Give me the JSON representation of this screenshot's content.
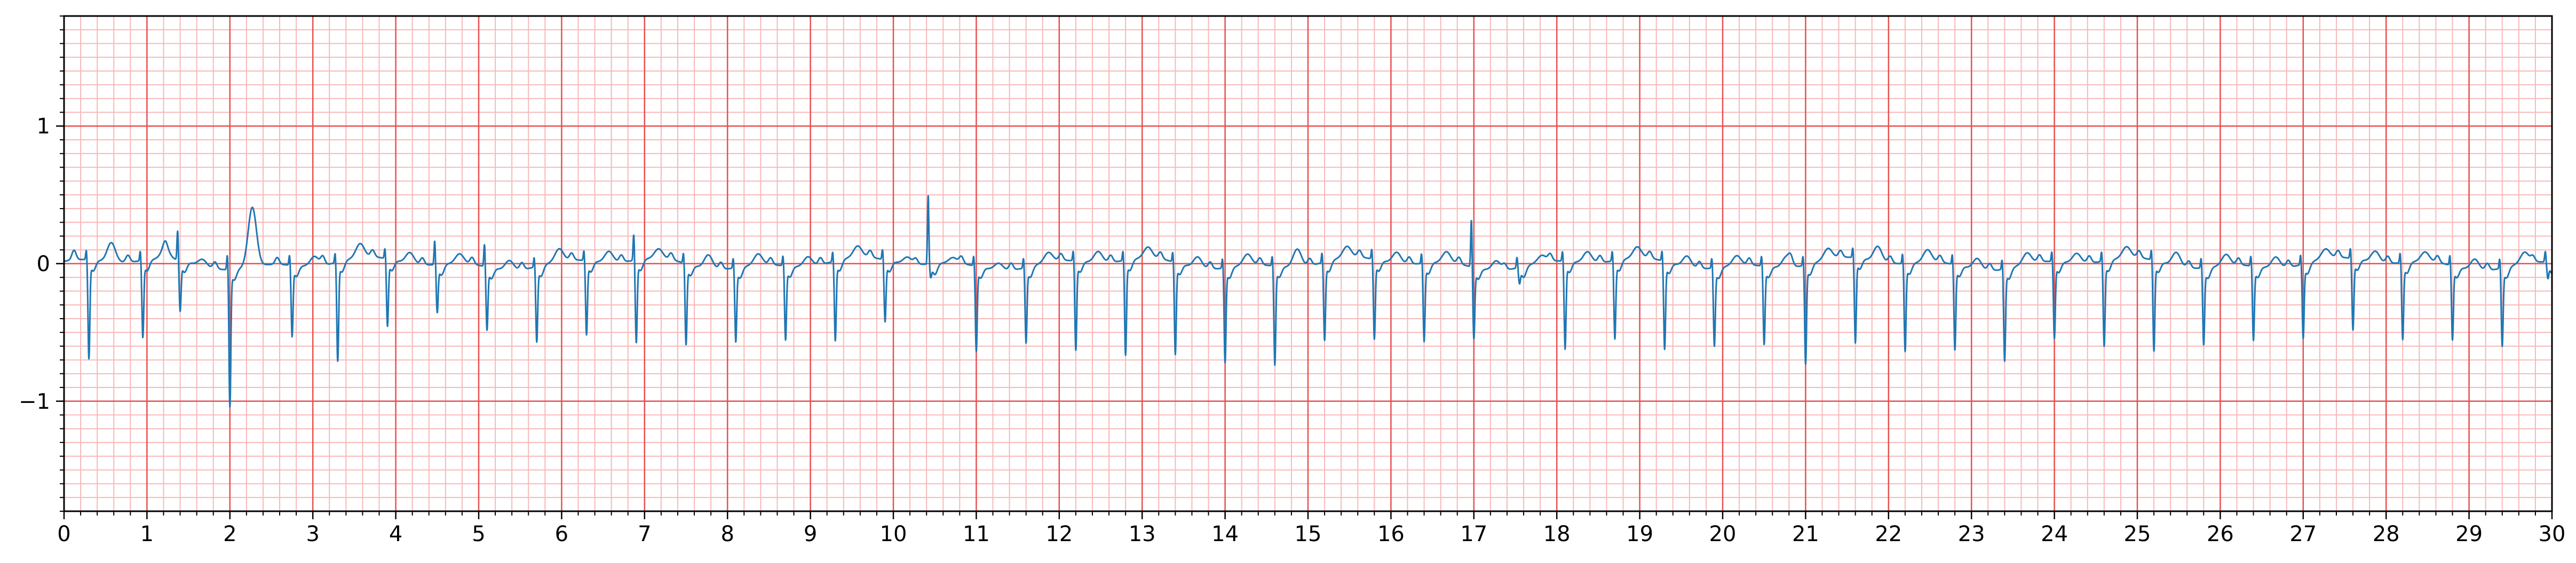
{
  "chart_data": {
    "type": "line",
    "title": "",
    "xlabel": "",
    "ylabel": "",
    "xlim": [
      0,
      30
    ],
    "ylim": [
      -1.8,
      1.8
    ],
    "x_major_ticks": [
      0,
      1,
      2,
      3,
      4,
      5,
      6,
      7,
      8,
      9,
      10,
      11,
      12,
      13,
      14,
      15,
      16,
      17,
      18,
      19,
      20,
      21,
      22,
      23,
      24,
      25,
      26,
      27,
      28,
      29,
      30
    ],
    "x_tick_labels": [
      "0",
      "1",
      "2",
      "3",
      "4",
      "5",
      "6",
      "7",
      "8",
      "9",
      "10",
      "11",
      "12",
      "13",
      "14",
      "15",
      "16",
      "17",
      "18",
      "19",
      "20",
      "21",
      "22",
      "23",
      "24",
      "25",
      "26",
      "27",
      "28",
      "29",
      "30"
    ],
    "x_minor_step": 0.2,
    "y_major_ticks": [
      -1,
      0,
      1
    ],
    "y_tick_labels": [
      "−1",
      "0",
      "1"
    ],
    "y_minor_step": 0.1,
    "grid": true,
    "grid_major_color": "#e85050",
    "grid_minor_color": "#f8b8b8",
    "line_color": "#1f77b4",
    "beats": [
      {
        "t": 0.3,
        "q": -0.7,
        "p": 0.07,
        "tw": 0.14
      },
      {
        "t": 0.95,
        "q": -0.54,
        "p": 0.05,
        "tw": 0.08
      },
      {
        "t": 1.4,
        "q": -0.35,
        "p": 0.05,
        "tw": 0.05,
        "r": 0.22
      },
      {
        "t": 2.0,
        "q": -0.98,
        "p": 0.05,
        "tw": 0.43,
        "r": 0.12
      },
      {
        "t": 2.75,
        "q": -0.5,
        "p": 0.05,
        "tw": 0.07
      },
      {
        "t": 3.3,
        "q": -0.7,
        "p": 0.06,
        "tw": 0.1
      },
      {
        "t": 3.9,
        "q": -0.47,
        "p": 0.05,
        "tw": 0.08
      },
      {
        "t": 4.5,
        "q": -0.33,
        "p": 0.05,
        "tw": 0.07,
        "r": 0.18
      },
      {
        "t": 5.1,
        "q": -0.44,
        "p": 0.05,
        "tw": 0.07,
        "r": 0.17
      },
      {
        "t": 5.7,
        "q": -0.53,
        "p": 0.05,
        "tw": 0.09
      },
      {
        "t": 6.3,
        "q": -0.52,
        "p": 0.05,
        "tw": 0.08
      },
      {
        "t": 6.9,
        "q": -0.58,
        "p": 0.05,
        "tw": 0.07,
        "r": 0.2
      },
      {
        "t": 7.5,
        "q": -0.57,
        "p": 0.05,
        "tw": 0.1
      },
      {
        "t": 8.1,
        "q": -0.52,
        "p": 0.05,
        "tw": 0.08
      },
      {
        "t": 8.7,
        "q": -0.52,
        "p": 0.05,
        "tw": 0.07
      },
      {
        "t": 9.3,
        "q": -0.56,
        "p": 0.05,
        "tw": 0.08
      },
      {
        "t": 9.9,
        "q": -0.43,
        "p": 0.05,
        "tw": 0.05
      },
      {
        "t": 10.45,
        "q": -0.08,
        "p": 0.04,
        "tw": 0.04,
        "r": 0.5
      },
      {
        "t": 11.0,
        "q": -0.6,
        "p": 0.05,
        "tw": 0.05
      },
      {
        "t": 11.6,
        "q": -0.53,
        "p": 0.05,
        "tw": 0.07
      },
      {
        "t": 12.2,
        "q": -0.63,
        "p": 0.05,
        "tw": 0.08
      },
      {
        "t": 12.8,
        "q": -0.67,
        "p": 0.05,
        "tw": 0.08
      },
      {
        "t": 13.4,
        "q": -0.65,
        "p": 0.05,
        "tw": 0.08
      },
      {
        "t": 14.0,
        "q": -0.67,
        "p": 0.05,
        "tw": 0.08
      },
      {
        "t": 14.6,
        "q": -0.7,
        "p": 0.05,
        "tw": 0.13
      },
      {
        "t": 15.2,
        "q": -0.55,
        "p": 0.05,
        "tw": 0.08
      },
      {
        "t": 15.8,
        "q": -0.56,
        "p": 0.05,
        "tw": 0.08
      },
      {
        "t": 16.4,
        "q": -0.55,
        "p": 0.05,
        "tw": 0.08
      },
      {
        "t": 17.0,
        "q": -0.5,
        "p": 0.05,
        "tw": 0.07,
        "r": 0.35
      },
      {
        "t": 17.55,
        "q": -0.1,
        "p": 0.04,
        "tw": 0.05
      },
      {
        "t": 18.1,
        "q": -0.62,
        "p": 0.05,
        "tw": 0.08
      },
      {
        "t": 18.7,
        "q": -0.55,
        "p": 0.05,
        "tw": 0.08
      },
      {
        "t": 19.3,
        "q": -0.62,
        "p": 0.05,
        "tw": 0.08
      },
      {
        "t": 19.9,
        "q": -0.55,
        "p": 0.05,
        "tw": 0.07
      },
      {
        "t": 20.5,
        "q": -0.55,
        "p": 0.05,
        "tw": 0.08
      },
      {
        "t": 21.0,
        "q": -0.7,
        "p": 0.05,
        "tw": 0.08
      },
      {
        "t": 21.6,
        "q": -0.6,
        "p": 0.05,
        "tw": 0.11
      },
      {
        "t": 22.2,
        "q": -0.62,
        "p": 0.05,
        "tw": 0.09
      },
      {
        "t": 22.8,
        "q": -0.6,
        "p": 0.05,
        "tw": 0.08
      },
      {
        "t": 23.4,
        "q": -0.65,
        "p": 0.05,
        "tw": 0.08
      },
      {
        "t": 24.0,
        "q": -0.54,
        "p": 0.05,
        "tw": 0.07
      },
      {
        "t": 24.6,
        "q": -0.6,
        "p": 0.05,
        "tw": 0.08
      },
      {
        "t": 25.2,
        "q": -0.64,
        "p": 0.05,
        "tw": 0.1
      },
      {
        "t": 25.8,
        "q": -0.54,
        "p": 0.05,
        "tw": 0.08
      },
      {
        "t": 26.4,
        "q": -0.52,
        "p": 0.05,
        "tw": 0.08
      },
      {
        "t": 27.0,
        "q": -0.52,
        "p": 0.05,
        "tw": 0.07
      },
      {
        "t": 27.6,
        "q": -0.5,
        "p": 0.05,
        "tw": 0.08
      },
      {
        "t": 28.2,
        "q": -0.54,
        "p": 0.05,
        "tw": 0.07
      },
      {
        "t": 28.8,
        "q": -0.52,
        "p": 0.05,
        "tw": 0.08
      },
      {
        "t": 29.4,
        "q": -0.55,
        "p": 0.05,
        "tw": 0.08
      },
      {
        "t": 29.95,
        "q": -0.1,
        "p": 0.04,
        "tw": 0.04
      }
    ]
  }
}
